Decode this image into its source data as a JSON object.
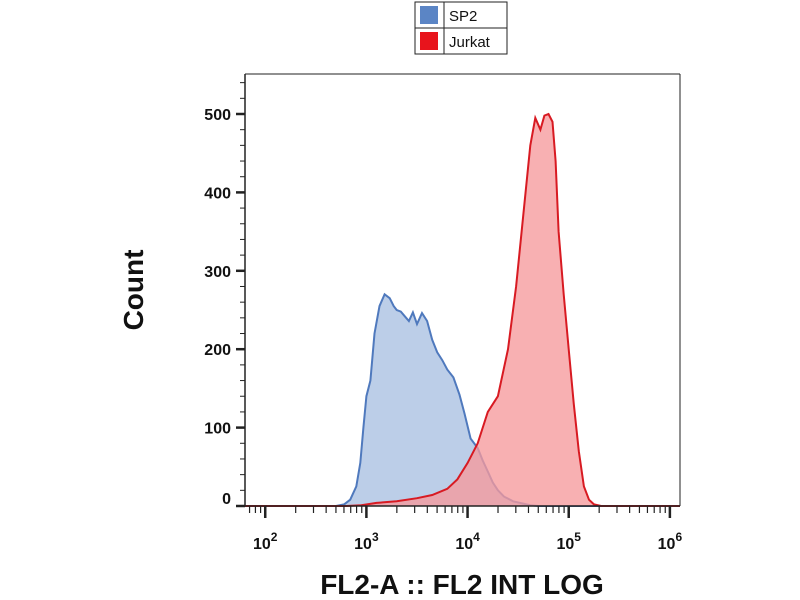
{
  "chart_data": {
    "type": "area",
    "title": "",
    "xlabel": "FL2-A :: FL2 INT LOG",
    "ylabel": "Count",
    "x_scale": "log",
    "xlim_log10": [
      1.8,
      6.1
    ],
    "ylim": [
      0,
      550
    ],
    "x_ticks": [
      {
        "exp": 2,
        "base": "10",
        "sup": "2"
      },
      {
        "exp": 3,
        "base": "10",
        "sup": "3"
      },
      {
        "exp": 4,
        "base": "10",
        "sup": "4"
      },
      {
        "exp": 5,
        "base": "10",
        "sup": "5"
      },
      {
        "exp": 6,
        "base": "10",
        "sup": "6"
      }
    ],
    "y_ticks": [
      0,
      100,
      200,
      300,
      400,
      500
    ],
    "y_tick_labels": [
      "0",
      "100",
      "200",
      "300",
      "400",
      "500"
    ],
    "legend": {
      "placement": "top-center",
      "entries": [
        {
          "label": "SP2",
          "color": "#5b85c5"
        },
        {
          "label": "Jurkat",
          "color": "#e8141c"
        }
      ]
    },
    "series": [
      {
        "name": "SP2",
        "fill": "#a9c0e2",
        "stroke": "#4f79bd",
        "x_log10": [
          1.8,
          2.7,
          2.78,
          2.84,
          2.9,
          2.94,
          2.97,
          3.0,
          3.04,
          3.08,
          3.13,
          3.18,
          3.23,
          3.27,
          3.3,
          3.34,
          3.38,
          3.42,
          3.46,
          3.5,
          3.55,
          3.6,
          3.65,
          3.7,
          3.75,
          3.8,
          3.86,
          3.92,
          3.97,
          4.03,
          4.1,
          4.15,
          4.2,
          4.25,
          4.3,
          4.36,
          4.45,
          4.55,
          4.62,
          4.7,
          4.75,
          6.1
        ],
        "values": [
          0,
          0,
          2,
          8,
          25,
          55,
          100,
          140,
          160,
          220,
          255,
          270,
          265,
          255,
          250,
          248,
          242,
          236,
          247,
          232,
          246,
          236,
          212,
          196,
          186,
          174,
          164,
          142,
          118,
          86,
          74,
          58,
          44,
          30,
          20,
          12,
          6,
          3,
          1,
          0,
          0,
          0
        ]
      },
      {
        "name": "Jurkat",
        "fill": "#f69a9c",
        "stroke": "#d81a22",
        "x_log10": [
          1.8,
          2.8,
          2.95,
          3.1,
          3.3,
          3.5,
          3.65,
          3.8,
          3.9,
          4.0,
          4.1,
          4.2,
          4.3,
          4.4,
          4.48,
          4.55,
          4.62,
          4.67,
          4.72,
          4.76,
          4.8,
          4.84,
          4.87,
          4.9,
          4.95,
          5.0,
          5.05,
          5.1,
          5.15,
          5.2,
          5.25,
          5.32,
          5.4,
          5.5,
          6.1
        ],
        "values": [
          0,
          0,
          1,
          4,
          6,
          10,
          14,
          22,
          34,
          55,
          80,
          120,
          140,
          200,
          280,
          370,
          460,
          495,
          480,
          498,
          500,
          490,
          440,
          350,
          270,
          200,
          130,
          70,
          25,
          8,
          2,
          0,
          0,
          0,
          0
        ]
      }
    ]
  }
}
